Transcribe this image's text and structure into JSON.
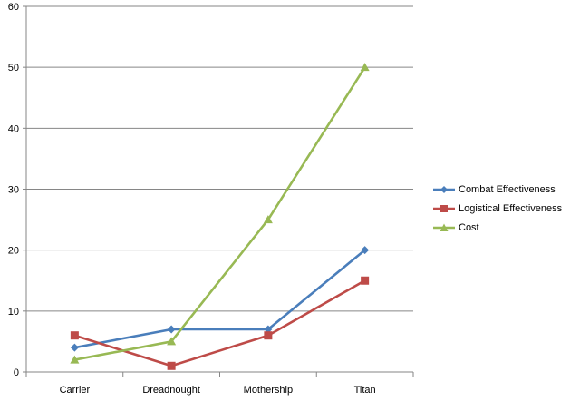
{
  "chart_data": {
    "type": "line",
    "categories": [
      "Carrier",
      "Dreadnought",
      "Mothership",
      "Titan"
    ],
    "series": [
      {
        "name": "Combat Effectiveness",
        "values": [
          4,
          7,
          7,
          20
        ],
        "color": "#4a7ebb",
        "marker": "diamond"
      },
      {
        "name": "Logistical Effectiveness",
        "values": [
          6,
          1,
          6,
          15
        ],
        "color": "#be4b48",
        "marker": "square"
      },
      {
        "name": "Cost",
        "values": [
          2,
          5,
          25,
          50
        ],
        "color": "#98b954",
        "marker": "triangle"
      }
    ],
    "ylim": [
      0,
      60
    ],
    "yticks": [
      0,
      10,
      20,
      30,
      40,
      50,
      60
    ],
    "grid": true,
    "legend": "right",
    "axis_color": "#868686",
    "grid_color": "#868686"
  }
}
